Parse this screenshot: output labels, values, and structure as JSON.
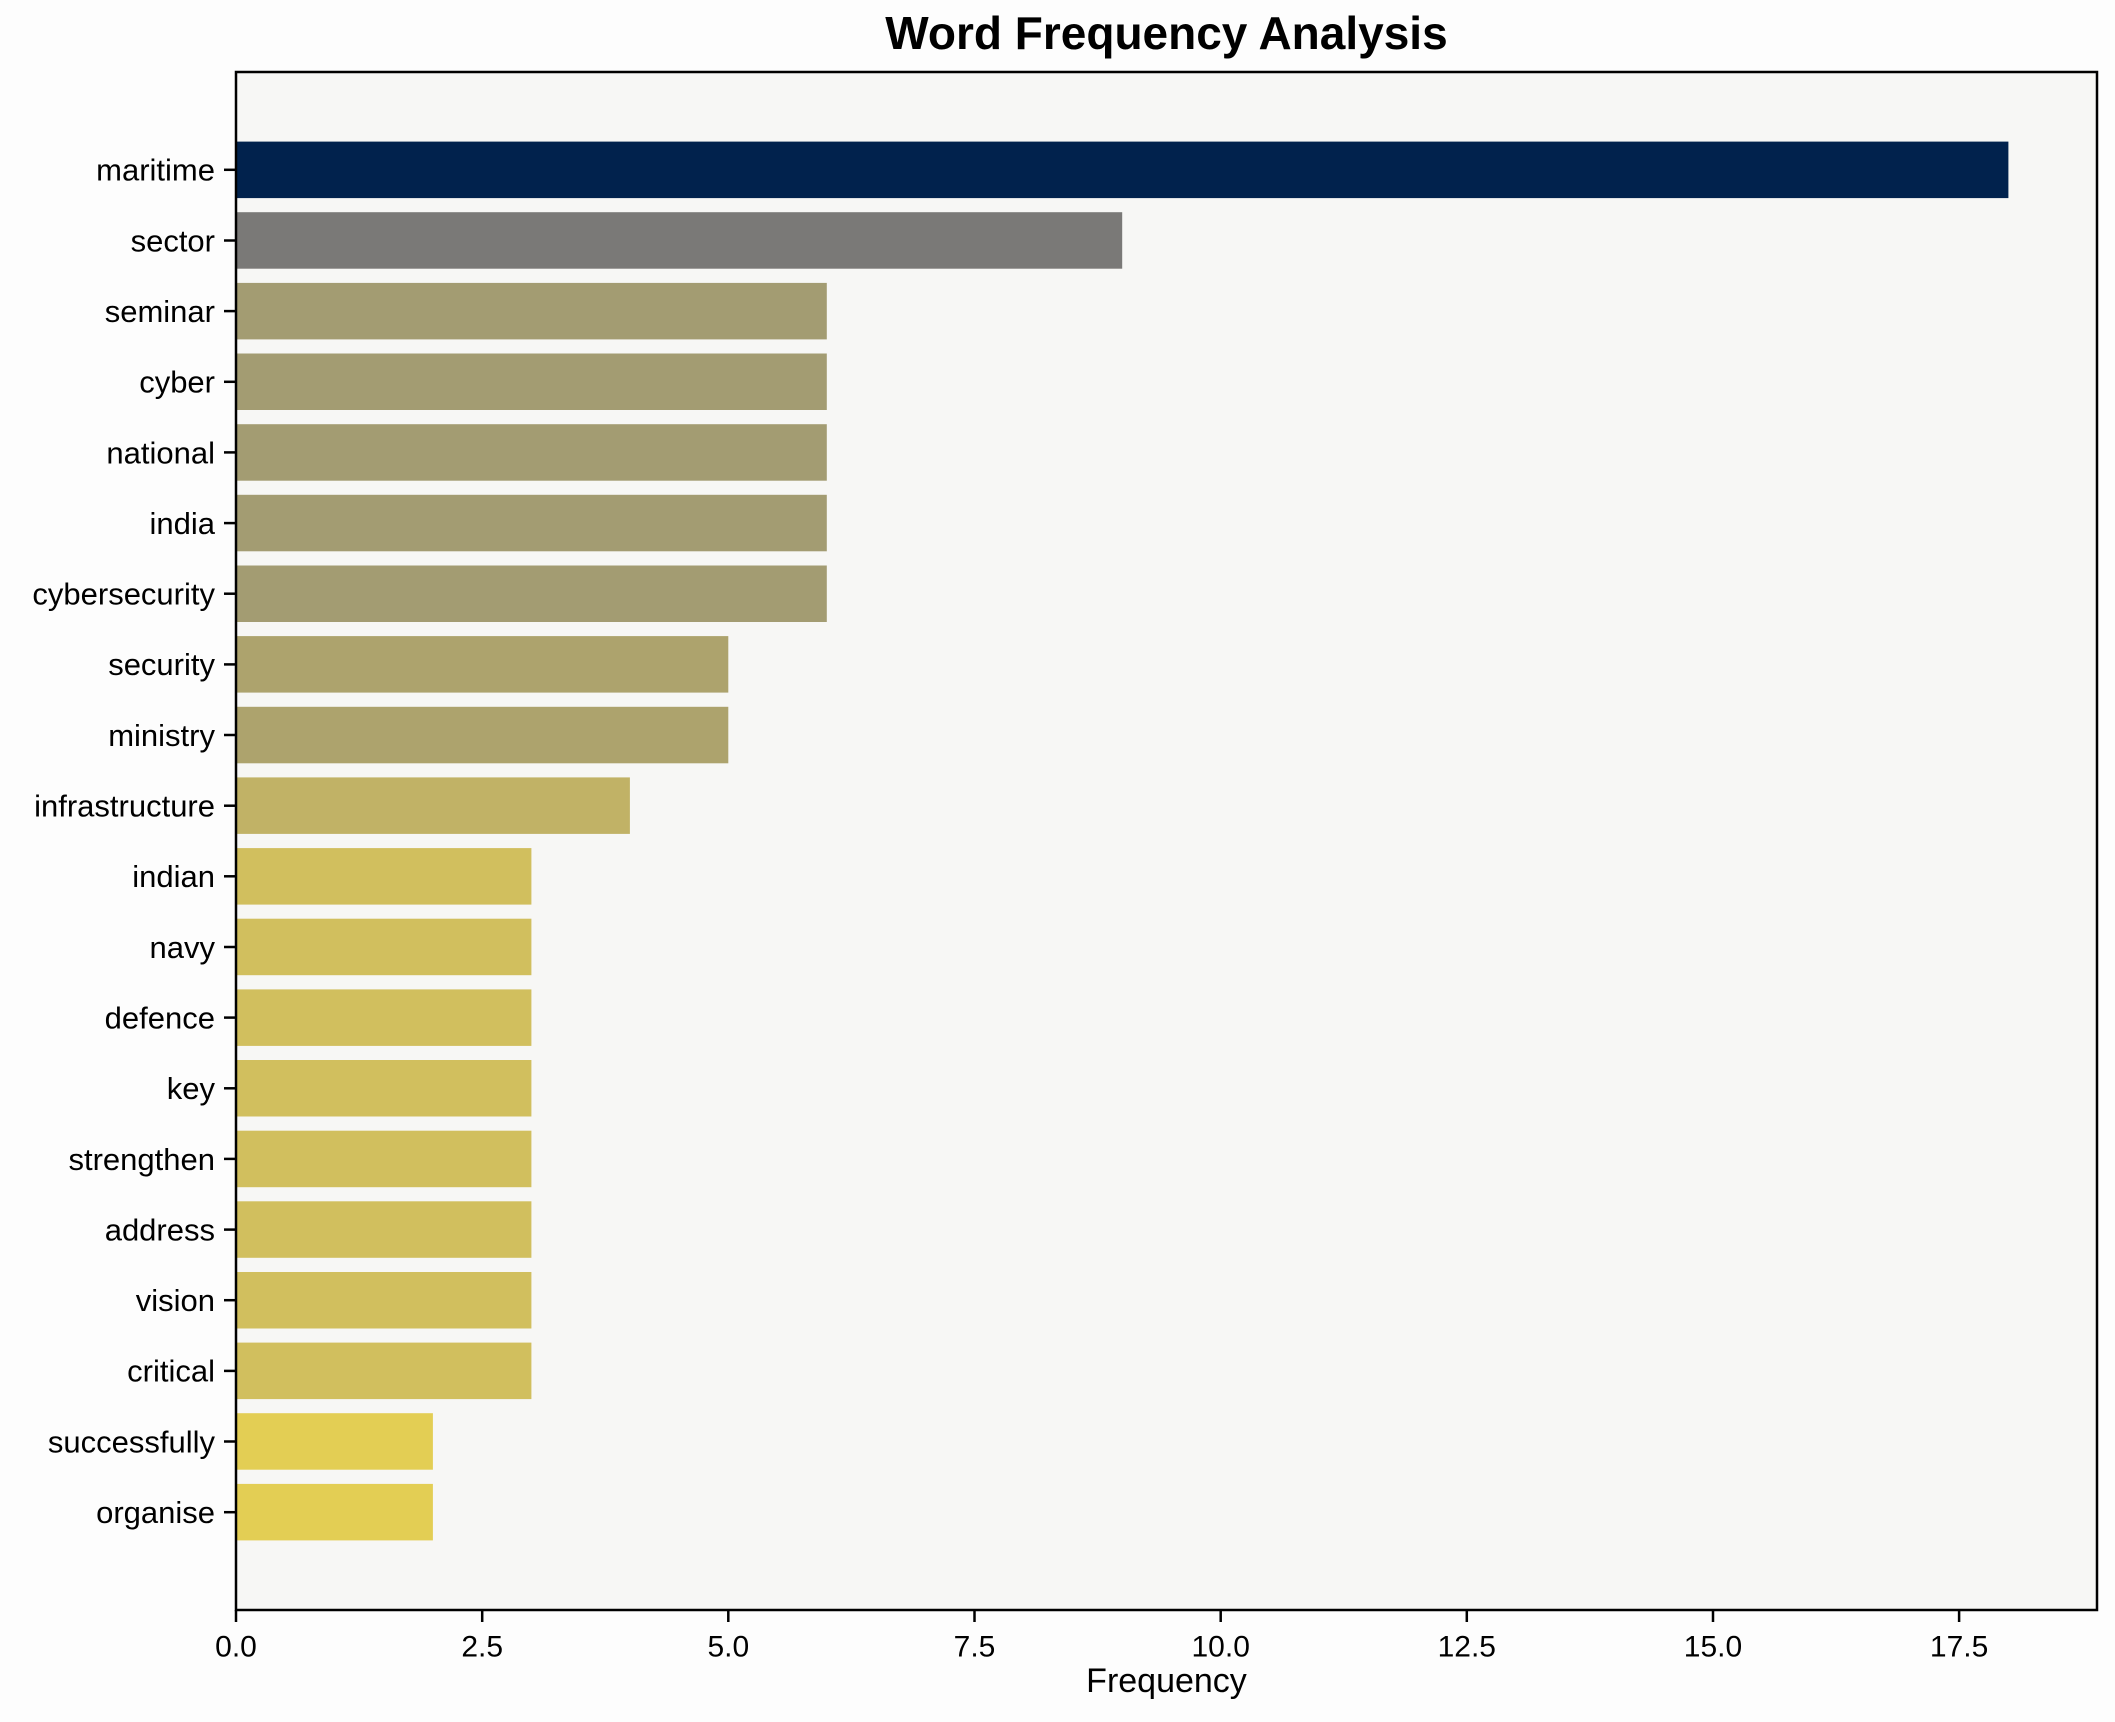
{
  "figure": {
    "title": "Word Frequency Analysis"
  },
  "chart_data": {
    "type": "bar",
    "orientation": "horizontal",
    "title": "Word Frequency Analysis",
    "xlabel": "Frequency",
    "ylabel": "",
    "categories": [
      "maritime",
      "sector",
      "seminar",
      "cyber",
      "national",
      "india",
      "cybersecurity",
      "security",
      "ministry",
      "infrastructure",
      "indian",
      "navy",
      "defence",
      "key",
      "strengthen",
      "address",
      "vision",
      "critical",
      "successfully",
      "organise"
    ],
    "values": [
      18,
      9,
      6,
      6,
      6,
      6,
      6,
      5,
      5,
      4,
      3,
      3,
      3,
      3,
      3,
      3,
      3,
      3,
      2,
      2
    ],
    "bar_colors": [
      "#01224d",
      "#7a7977",
      "#a39c72",
      "#a39c72",
      "#a39c72",
      "#a39c72",
      "#a39c72",
      "#ada36d",
      "#ada36d",
      "#c1b266",
      "#d1bf5e",
      "#d1bf5e",
      "#d1bf5e",
      "#d1bf5e",
      "#d1bf5e",
      "#d1bf5e",
      "#d1bf5e",
      "#d1bf5e",
      "#e3ce54",
      "#e3ce54"
    ],
    "xlim": [
      0,
      18.9
    ],
    "xticks": [
      {
        "v": 0,
        "label": "0.0"
      },
      {
        "v": 2.5,
        "label": "2.5"
      },
      {
        "v": 5,
        "label": "5.0"
      },
      {
        "v": 7.5,
        "label": "7.5"
      },
      {
        "v": 10,
        "label": "10.0"
      },
      {
        "v": 12.5,
        "label": "12.5"
      },
      {
        "v": 15,
        "label": "15.0"
      },
      {
        "v": 17.5,
        "label": "17.5"
      }
    ],
    "grid": false,
    "legend": null,
    "plot_bg": "#f7f7f5",
    "figure_bg": "#fdfdfd",
    "spine_color": "#000000",
    "text_color": "#000000"
  }
}
